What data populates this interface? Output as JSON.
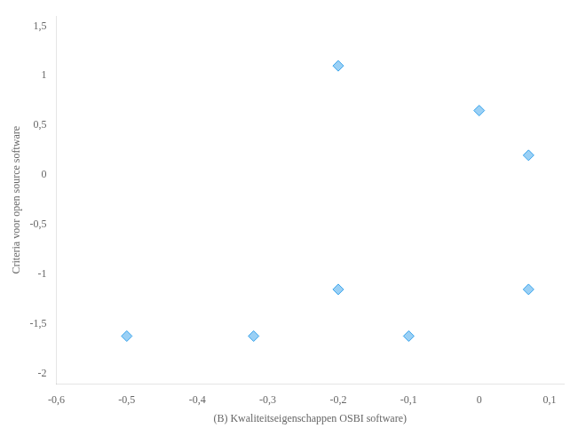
{
  "chart_data": {
    "type": "scatter",
    "x": [
      -0.5,
      -0.32,
      -0.2,
      -0.2,
      -0.1,
      0.0,
      0.07,
      0.07
    ],
    "y": [
      -1.62,
      -1.62,
      1.1,
      -1.15,
      -1.62,
      0.65,
      0.2,
      -1.15
    ],
    "marker": "diamond",
    "xlabel": "(B) Kwaliteitseigenschappen OSBI software)",
    "ylabel": "Criteria voor open source software",
    "xlim": [
      -0.6,
      0.12
    ],
    "ylim": [
      -2.1,
      1.6
    ],
    "xticks": [
      {
        "value": -0.6,
        "label": "-0,6"
      },
      {
        "value": -0.5,
        "label": "-0,5"
      },
      {
        "value": -0.4,
        "label": "-0,4"
      },
      {
        "value": -0.3,
        "label": "-0,3"
      },
      {
        "value": -0.2,
        "label": "-0,2"
      },
      {
        "value": -0.1,
        "label": "-0,1"
      },
      0,
      {
        "value": 0.1,
        "label": "0,1"
      }
    ],
    "yticks": [
      -2,
      {
        "value": -1.5,
        "label": "-1,5"
      },
      -1,
      {
        "value": -0.5,
        "label": "-0,5"
      },
      0,
      {
        "value": 0.5,
        "label": "0,5"
      },
      1,
      {
        "value": 1.5,
        "label": "1,5"
      }
    ],
    "grid": false
  }
}
